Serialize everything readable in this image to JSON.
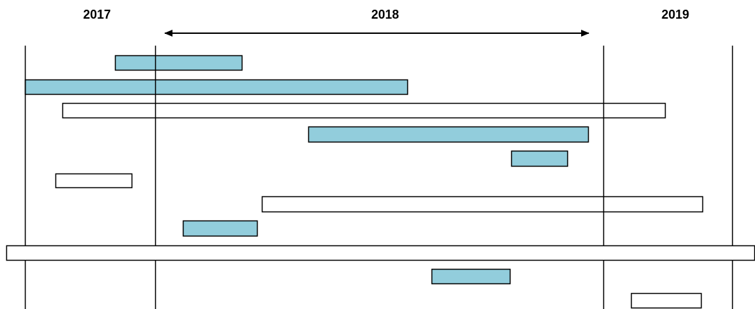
{
  "header": {
    "years": [
      "2017",
      "2018",
      "2019"
    ]
  }
}
